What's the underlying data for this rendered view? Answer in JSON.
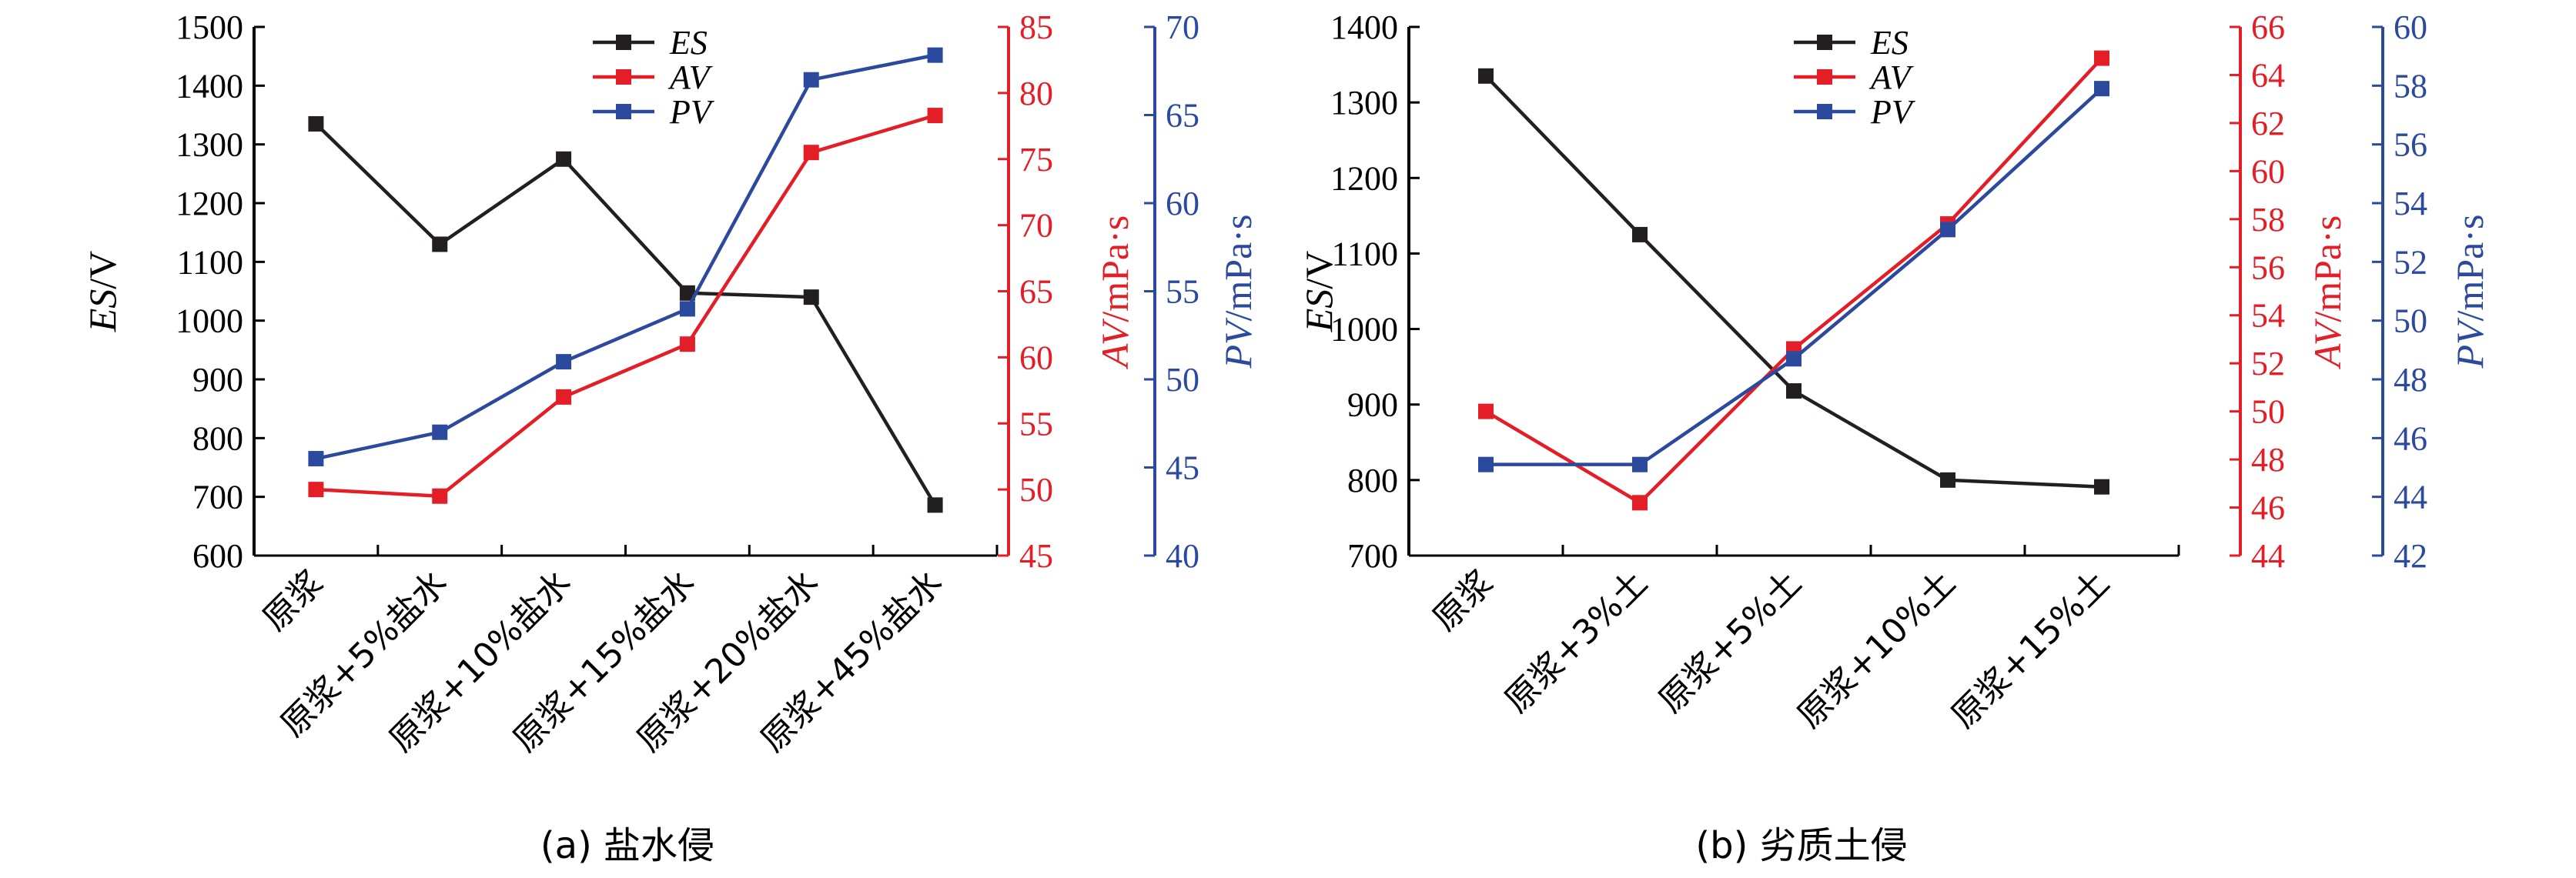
{
  "colors": {
    "ES": "#231f20",
    "AV": "#e41e26",
    "PV": "#2b4a9e"
  },
  "chart_data": [
    {
      "type": "line",
      "caption": "(a) 盐水侵",
      "categories": [
        "原浆",
        "原浆+5%盐水",
        "原浆+10%盐水",
        "原浆+15%盐水",
        "原浆+20%盐水",
        "原浆+45%盐水"
      ],
      "axes": {
        "ES": {
          "label_main": "ES",
          "label_unit": "/V",
          "min": 600,
          "max": 1500,
          "step": 100
        },
        "AV": {
          "label_main": "AV",
          "label_unit": "/mPa·s",
          "min": 45,
          "max": 85,
          "step": 5
        },
        "PV": {
          "label_main": "PV",
          "label_unit": "/mPa·s",
          "min": 40,
          "max": 70,
          "step": 5
        }
      },
      "series": [
        {
          "name": "ES",
          "axis": "ES",
          "values": [
            1335,
            1130,
            1275,
            1047,
            1040,
            686
          ]
        },
        {
          "name": "AV",
          "axis": "AV",
          "values": [
            50,
            49.5,
            57,
            61,
            75.5,
            78.3
          ]
        },
        {
          "name": "PV",
          "axis": "PV",
          "values": [
            45.5,
            47,
            51,
            54,
            67,
            68.4
          ]
        }
      ]
    },
    {
      "type": "line",
      "caption": "(b) 劣质土侵",
      "categories": [
        "原浆",
        "原浆+3%土",
        "原浆+5%土",
        "原浆+10%土",
        "原浆+15%土"
      ],
      "axes": {
        "ES": {
          "label_main": "ES",
          "label_unit": "/V",
          "min": 700,
          "max": 1400,
          "step": 100
        },
        "AV": {
          "label_main": "AV",
          "label_unit": "/mPa·s",
          "min": 44,
          "max": 66,
          "step": 2
        },
        "PV": {
          "label_main": "PV",
          "label_unit": "/mPa·s",
          "min": 42,
          "max": 60,
          "step": 2
        }
      },
      "series": [
        {
          "name": "ES",
          "axis": "ES",
          "values": [
            1335,
            1125,
            918,
            800,
            791
          ]
        },
        {
          "name": "AV",
          "axis": "AV",
          "values": [
            50,
            46.2,
            52.6,
            57.8,
            64.7
          ]
        },
        {
          "name": "PV",
          "axis": "PV",
          "values": [
            45.1,
            45.1,
            48.7,
            53.1,
            57.9
          ]
        }
      ]
    }
  ]
}
